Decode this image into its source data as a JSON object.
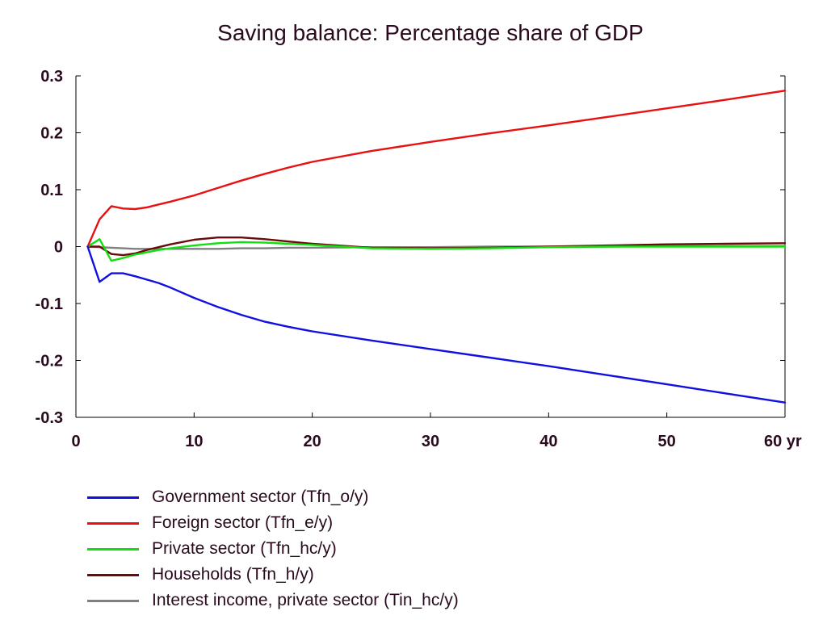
{
  "chart_data": {
    "type": "line",
    "title": "Saving balance: Percentage share of GDP",
    "xlabel": "",
    "ylabel": "",
    "xlim": [
      0,
      60
    ],
    "ylim": [
      -0.3,
      0.3
    ],
    "x_ticks": [
      0,
      10,
      20,
      30,
      40,
      50,
      60
    ],
    "x_tick_labels": [
      "0",
      "10",
      "20",
      "30",
      "40",
      "50",
      "60 yr"
    ],
    "y_ticks": [
      0.3,
      0.2,
      0.1,
      0,
      -0.1,
      -0.2,
      -0.3
    ],
    "y_tick_labels": [
      "0.3",
      "0.2",
      "0.1",
      "0",
      "-0.1",
      "-0.2",
      "-0.3"
    ],
    "grid": false,
    "legend_position": "bottom",
    "series": [
      {
        "name": "Government sector (Tfn_o/y)",
        "color": "#1010e0",
        "x": [
          1,
          2,
          3,
          4,
          5,
          6,
          7,
          8,
          10,
          12,
          14,
          16,
          18,
          20,
          25,
          30,
          35,
          40,
          45,
          50,
          55,
          60
        ],
        "values": [
          0,
          -0.062,
          -0.047,
          -0.047,
          -0.052,
          -0.058,
          -0.064,
          -0.072,
          -0.09,
          -0.106,
          -0.12,
          -0.132,
          -0.141,
          -0.149,
          -0.165,
          -0.18,
          -0.195,
          -0.21,
          -0.226,
          -0.242,
          -0.258,
          -0.274
        ]
      },
      {
        "name": "Foreign sector (Tfn_e/y)",
        "color": "#e81010",
        "x": [
          1,
          2,
          3,
          4,
          5,
          6,
          7,
          8,
          10,
          12,
          14,
          16,
          18,
          20,
          25,
          30,
          35,
          40,
          45,
          50,
          55,
          60
        ],
        "values": [
          0,
          0.048,
          0.071,
          0.067,
          0.066,
          0.069,
          0.074,
          0.079,
          0.09,
          0.103,
          0.116,
          0.128,
          0.139,
          0.149,
          0.168,
          0.184,
          0.199,
          0.213,
          0.228,
          0.243,
          0.258,
          0.274
        ]
      },
      {
        "name": "Private sector (Tfn_hc/y)",
        "color": "#10e010",
        "x": [
          1,
          2,
          3,
          4,
          5,
          6,
          7,
          8,
          10,
          12,
          14,
          16,
          18,
          20,
          25,
          30,
          35,
          40,
          45,
          50,
          55,
          60
        ],
        "values": [
          0,
          0.013,
          -0.025,
          -0.02,
          -0.014,
          -0.01,
          -0.006,
          -0.003,
          0.002,
          0.006,
          0.008,
          0.007,
          0.005,
          0.003,
          -0.003,
          -0.004,
          -0.003,
          -0.001,
          0,
          0,
          0,
          0
        ]
      },
      {
        "name": "Households (Tfn_h/y)",
        "color": "#6b0a0a",
        "x": [
          1,
          2,
          3,
          4,
          5,
          6,
          7,
          8,
          10,
          12,
          14,
          16,
          18,
          20,
          25,
          30,
          35,
          40,
          45,
          50,
          55,
          60
        ],
        "values": [
          0,
          0,
          -0.013,
          -0.015,
          -0.012,
          -0.006,
          -0.001,
          0.004,
          0.012,
          0.016,
          0.016,
          0.013,
          0.009,
          0.005,
          -0.002,
          -0.003,
          -0.002,
          0,
          0.002,
          0.004,
          0.005,
          0.006
        ]
      },
      {
        "name": "Interest income, private sector (Tin_hc/y)",
        "color": "#808080",
        "x": [
          1,
          2,
          3,
          4,
          5,
          6,
          7,
          8,
          10,
          12,
          14,
          16,
          18,
          20,
          25,
          30,
          35,
          40,
          45,
          50,
          55,
          60
        ],
        "values": [
          0,
          -0.001,
          -0.002,
          -0.003,
          -0.004,
          -0.004,
          -0.004,
          -0.004,
          -0.004,
          -0.004,
          -0.003,
          -0.003,
          -0.002,
          -0.002,
          -0.001,
          -0.001,
          0,
          0,
          0,
          0.001,
          0.001,
          0.001
        ]
      }
    ]
  }
}
